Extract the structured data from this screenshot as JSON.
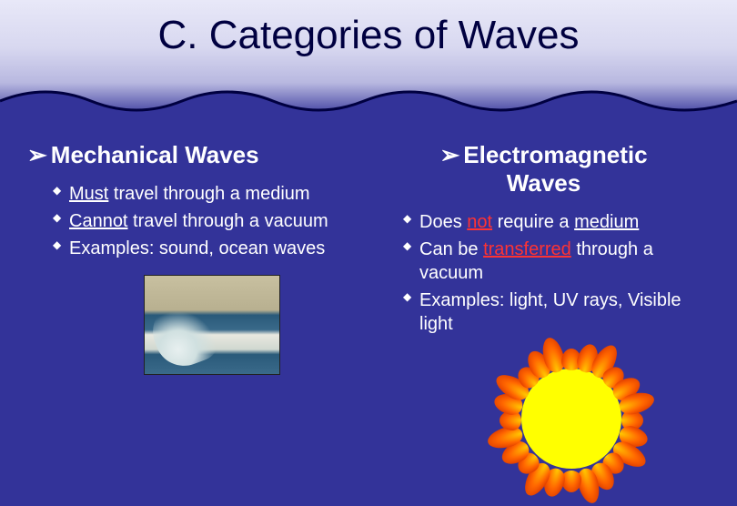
{
  "slide": {
    "title": "C. Categories of Waves",
    "background_color": "#333399",
    "header_gradient_top": "#e8e8f8",
    "header_gradient_bottom": "#333399"
  },
  "left": {
    "heading": "Mechanical Waves",
    "bullets": [
      {
        "pre": "",
        "key": "Must",
        "post": " travel through a medium",
        "keyClass": "underline"
      },
      {
        "pre": "",
        "key": "Cannot",
        "post": " travel through a vacuum",
        "keyClass": "underline"
      },
      {
        "pre": "Examples: sound, ocean waves",
        "key": "",
        "post": "",
        "keyClass": ""
      }
    ],
    "image_label": "great-wave"
  },
  "right": {
    "heading_line1": "Electromagnetic",
    "heading_line2": "Waves",
    "bullets": [
      {
        "pre": "Does ",
        "key": "not",
        "mid": " require a ",
        "key2": "medium",
        "keyClass": "underline red",
        "key2Class": "underline"
      },
      {
        "pre": "Can be ",
        "key": "transferred",
        "mid": " through a vacuum",
        "key2": "",
        "keyClass": "underline red",
        "key2Class": ""
      },
      {
        "pre": "Examples: light, UV rays, Visible light",
        "key": "",
        "mid": "",
        "key2": "",
        "keyClass": "",
        "key2Class": ""
      }
    ],
    "image_label": "sun"
  },
  "styling": {
    "title_fontsize": 44,
    "heading_fontsize": 26,
    "bullet_fontsize": 20,
    "text_color": "#ffffff",
    "red_color": "#ff3333",
    "arrow_glyph": "➢",
    "bullet_glyph": "◆"
  }
}
